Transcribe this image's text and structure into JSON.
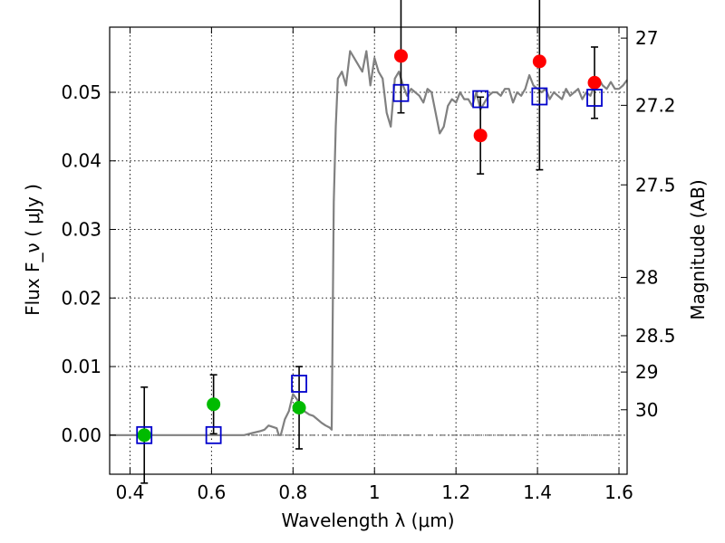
{
  "chart_data": {
    "type": "scatter",
    "title": "",
    "xlabel": "Wavelength  λ (μm)",
    "ylabel": "Flux  F_ν  ( μJy )",
    "y2label": "Magnitude (AB)",
    "xlim": [
      0.35,
      1.62
    ],
    "ylim": [
      -0.0057,
      0.0595
    ],
    "grid": true,
    "x_ticks": [
      0.4,
      0.6,
      0.8,
      1.0,
      1.2,
      1.4,
      1.6
    ],
    "x_tick_labels": [
      "0.4",
      "0.6",
      "0.8",
      "1",
      "1.2",
      "1.4",
      "1.6"
    ],
    "y_ticks": [
      0.0,
      0.01,
      0.02,
      0.03,
      0.04,
      0.05
    ],
    "y_tick_labels": [
      "0.00",
      "0.01",
      "0.02",
      "0.03",
      "0.04",
      "0.05"
    ],
    "y2_ticks": [
      {
        "label": "27",
        "flux": 0.0579
      },
      {
        "label": "27.2",
        "flux": 0.0481
      },
      {
        "label": "27.5",
        "flux": 0.0365
      },
      {
        "label": "28",
        "flux": 0.023
      },
      {
        "label": "28.5",
        "flux": 0.0145
      },
      {
        "label": "29",
        "flux": 0.0092
      },
      {
        "label": "30",
        "flux": 0.0037
      }
    ],
    "spectrum": {
      "color": "#808080",
      "x": [
        0.35,
        0.6,
        0.68,
        0.7,
        0.72,
        0.73,
        0.74,
        0.75,
        0.76,
        0.765,
        0.77,
        0.78,
        0.79,
        0.8,
        0.81,
        0.82,
        0.83,
        0.84,
        0.85,
        0.86,
        0.87,
        0.88,
        0.89,
        0.895,
        0.9,
        0.905,
        0.91,
        0.92,
        0.93,
        0.94,
        0.95,
        0.96,
        0.97,
        0.98,
        0.99,
        1.0,
        1.01,
        1.02,
        1.03,
        1.04,
        1.05,
        1.06,
        1.07,
        1.08,
        1.09,
        1.1,
        1.11,
        1.12,
        1.13,
        1.14,
        1.15,
        1.16,
        1.17,
        1.18,
        1.19,
        1.2,
        1.21,
        1.22,
        1.23,
        1.24,
        1.25,
        1.26,
        1.27,
        1.28,
        1.29,
        1.3,
        1.31,
        1.32,
        1.33,
        1.34,
        1.35,
        1.36,
        1.37,
        1.38,
        1.39,
        1.4,
        1.41,
        1.42,
        1.43,
        1.44,
        1.45,
        1.46,
        1.47,
        1.48,
        1.49,
        1.5,
        1.51,
        1.52,
        1.53,
        1.54,
        1.55,
        1.56,
        1.57,
        1.58,
        1.59,
        1.6,
        1.61,
        1.62
      ],
      "y": [
        0.0,
        0.0,
        0.0,
        0.0003,
        0.0006,
        0.0008,
        0.0014,
        0.0012,
        0.001,
        0.0,
        0.0,
        0.0023,
        0.0035,
        0.006,
        0.0052,
        0.004,
        0.0034,
        0.003,
        0.0028,
        0.0023,
        0.0018,
        0.0014,
        0.0011,
        0.0008,
        0.034,
        0.045,
        0.052,
        0.053,
        0.051,
        0.056,
        0.055,
        0.054,
        0.053,
        0.056,
        0.051,
        0.055,
        0.053,
        0.052,
        0.047,
        0.045,
        0.052,
        0.053,
        0.051,
        0.0495,
        0.0505,
        0.05,
        0.0495,
        0.0485,
        0.0505,
        0.05,
        0.047,
        0.044,
        0.045,
        0.048,
        0.049,
        0.0485,
        0.05,
        0.049,
        0.049,
        0.048,
        0.05,
        0.0475,
        0.0485,
        0.0495,
        0.05,
        0.05,
        0.0495,
        0.0505,
        0.0505,
        0.0485,
        0.05,
        0.0495,
        0.0505,
        0.0525,
        0.051,
        0.0505,
        0.05,
        0.0505,
        0.049,
        0.05,
        0.0495,
        0.049,
        0.0505,
        0.0495,
        0.05,
        0.0505,
        0.049,
        0.05,
        0.0495,
        0.051,
        0.052,
        0.051,
        0.0505,
        0.0515,
        0.0505,
        0.0505,
        0.051,
        0.0518
      ]
    },
    "model_points": {
      "color": "#0000cc",
      "x": [
        0.435,
        0.605,
        0.815,
        1.065,
        1.26,
        1.405,
        1.54
      ],
      "y": [
        0.0,
        0.0,
        0.0075,
        0.0499,
        0.049,
        0.0494,
        0.0492
      ]
    },
    "observations": [
      {
        "x": 0.435,
        "y": 0.0,
        "err": 0.007,
        "color": "#00bb00"
      },
      {
        "x": 0.605,
        "y": 0.0045,
        "err": 0.0043,
        "color": "#00bb00"
      },
      {
        "x": 0.815,
        "y": 0.004,
        "err": 0.006,
        "color": "#00bb00"
      },
      {
        "x": 1.065,
        "y": 0.0553,
        "err": 0.0083,
        "color": "#ff0000"
      },
      {
        "x": 1.26,
        "y": 0.0437,
        "err": 0.0056,
        "color": "#ff0000"
      },
      {
        "x": 1.405,
        "y": 0.0545,
        "err": 0.0158,
        "color": "#ff0000"
      },
      {
        "x": 1.54,
        "y": 0.0514,
        "err": 0.0052,
        "color": "#ff0000"
      }
    ],
    "zero_line": {
      "y": 0.0,
      "style": "dash-dot",
      "color": "#555555"
    }
  }
}
